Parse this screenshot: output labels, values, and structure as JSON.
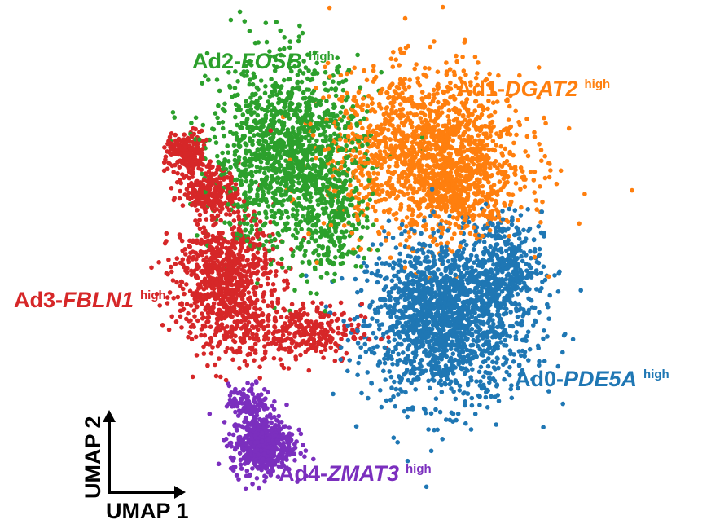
{
  "chart_data": {
    "type": "scatter",
    "title": "",
    "xlabel": "UMAP 1",
    "ylabel": "UMAP 2",
    "legend": "labels placed next to clusters",
    "grid": false,
    "axes": "arrows only (bottom-left corner), no ticks",
    "xlim": [
      0,
      100
    ],
    "ylim": [
      0,
      100
    ],
    "series": [
      {
        "key": "ad0",
        "prefix": "Ad0-",
        "gene": "PDE5A",
        "suffix": "high",
        "color": "#1f77b4",
        "label_anchor": "right",
        "regions": [
          {
            "cx": 64,
            "cy": 36,
            "rx": 12,
            "ry": 14,
            "n": 1400
          },
          {
            "cx": 72,
            "cy": 47,
            "rx": 6,
            "ry": 9,
            "n": 350
          },
          {
            "cx": 60,
            "cy": 40,
            "rx": 8,
            "ry": 10,
            "n": 300
          }
        ]
      },
      {
        "key": "ad1",
        "prefix": "Ad1-",
        "gene": "DGAT2",
        "suffix": "high",
        "color": "#ff7f0e",
        "label_anchor": "top-right",
        "regions": [
          {
            "cx": 60,
            "cy": 68,
            "rx": 14,
            "ry": 14,
            "n": 1500
          },
          {
            "cx": 66,
            "cy": 60,
            "rx": 7,
            "ry": 6,
            "n": 250
          }
        ]
      },
      {
        "key": "ad2",
        "prefix": "Ad2-",
        "gene": "FOSB",
        "suffix": "high",
        "color": "#2ca02c",
        "label_anchor": "top",
        "regions": [
          {
            "cx": 38,
            "cy": 68,
            "rx": 11,
            "ry": 16,
            "n": 1300
          },
          {
            "cx": 45,
            "cy": 56,
            "rx": 5,
            "ry": 11,
            "n": 250
          }
        ]
      },
      {
        "key": "ad3",
        "prefix": "Ad3-",
        "gene": "FBLN1",
        "suffix": "high",
        "color": "#d62728",
        "label_anchor": "left",
        "regions": [
          {
            "cx": 28,
            "cy": 44,
            "rx": 7,
            "ry": 12,
            "n": 900
          },
          {
            "cx": 26,
            "cy": 61,
            "rx": 4,
            "ry": 4,
            "n": 250
          },
          {
            "cx": 22,
            "cy": 68,
            "rx": 3,
            "ry": 3.5,
            "n": 200
          },
          {
            "cx": 40,
            "cy": 34,
            "rx": 9,
            "ry": 5,
            "n": 300
          }
        ]
      },
      {
        "key": "ad4",
        "prefix": "Ad4-",
        "gene": "ZMAT3",
        "suffix": "high",
        "color": "#7b2fbe",
        "label_anchor": "bottom",
        "regions": [
          {
            "cx": 34,
            "cy": 13,
            "rx": 4.5,
            "ry": 5,
            "n": 550
          },
          {
            "cx": 32,
            "cy": 21,
            "rx": 3,
            "ry": 3,
            "n": 120
          }
        ]
      }
    ]
  }
}
